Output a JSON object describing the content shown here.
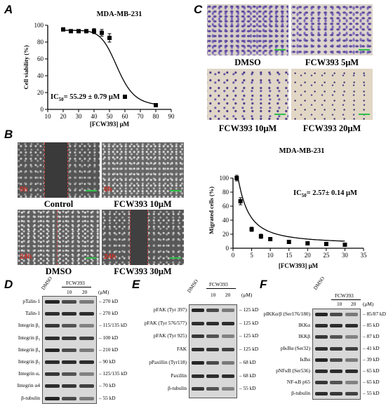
{
  "panels": {
    "A": {
      "letter": "A",
      "title": "MDA-MB-231",
      "ylabel": "Cell viability (%)",
      "xlabel": "[FCW393] μM",
      "ic50_prefix": "IC",
      "ic50_sub": "50",
      "ic50_value": "= 55.29 ± 0.79 μM"
    },
    "B": {
      "letter": "B",
      "labels": [
        "Control",
        "FCW393 10μM",
        "DMSO",
        "FCW393 30μM"
      ],
      "time_badges": [
        "0h",
        "0h",
        "24h",
        "24h"
      ]
    },
    "C": {
      "letter": "C",
      "labels": [
        "DMSO",
        "FCW393 5μM",
        "FCW393 10μM",
        "FCW393 20μM"
      ],
      "title": "MDA-MB-231",
      "ylabel": "Migrated cells (%)",
      "xlabel": "[FCW393] μM",
      "ic50_prefix": "IC",
      "ic50_sub": "50",
      "ic50_value": "= 2.57± 0.14 μM"
    },
    "D": {
      "letter": "D",
      "lane_dmso": "DMSO",
      "drug": "FCW393",
      "doses": [
        "10",
        "20"
      ],
      "unit": "(μM)",
      "rows": [
        {
          "label": "pTalin-1",
          "size": "270 kD"
        },
        {
          "label": "Talin-1",
          "size": "270 kD"
        },
        {
          "label": "Integrin β₁",
          "size": "115/135 kD"
        },
        {
          "label": "Integrin β₃",
          "size": "100 kD"
        },
        {
          "label": "Integrin β₄",
          "size": "210 kD"
        },
        {
          "label": "Integrin β₅",
          "size": "90 kD"
        },
        {
          "label": "Integrin αᵥ",
          "size": "125/135 kD"
        },
        {
          "label": "Integrin α4",
          "size": "70 kD"
        },
        {
          "label": "β-tubulin",
          "size": "55 kD"
        }
      ]
    },
    "E": {
      "letter": "E",
      "lane_dmso": "DMSO",
      "drug": "FCW393",
      "doses": [
        "10",
        "20"
      ],
      "unit": "(μM)",
      "rows": [
        {
          "label": "pFAK (Tyr 397)",
          "size": "125 kD"
        },
        {
          "label": "pFAK (Tyr 576/577)",
          "size": "125 kD"
        },
        {
          "label": "pFAK (Tyr 925)",
          "size": "125 kD"
        },
        {
          "label": "FAK",
          "size": "125 kD"
        },
        {
          "label": "pPaxillin (Tyr118)",
          "size": "68 kD"
        },
        {
          "label": "Paxillin",
          "size": "68 kD"
        },
        {
          "label": "β-tubulin",
          "size": "55 kD"
        }
      ]
    },
    "F": {
      "letter": "F",
      "lane_dmso": "DMSO",
      "drug": "FCW393",
      "doses": [
        "10",
        "20"
      ],
      "unit": "(μM)",
      "rows": [
        {
          "label": "pIKKα/β (Ser176/180)",
          "size": "85/87 kD"
        },
        {
          "label": "IKKα",
          "size": "85 kD"
        },
        {
          "label": "IKKβ",
          "size": "87 kD"
        },
        {
          "label": "pIκBα (Ser32)",
          "size": "41 kD"
        },
        {
          "label": "IκBα",
          "size": "39 kD"
        },
        {
          "label": "pNFκB (Ser536)",
          "size": "65 kD"
        },
        {
          "label": "NF-κB p65",
          "size": "65 kD"
        },
        {
          "label": "β-tubulin",
          "size": "55 kD"
        }
      ]
    }
  },
  "chart_data": [
    {
      "type": "scatter",
      "title": "MDA-MB-231",
      "xlabel": "[FCW393] μM",
      "ylabel": "Cell viability (%)",
      "xlim": [
        10,
        90
      ],
      "ylim": [
        0,
        100
      ],
      "xticks": [
        10,
        20,
        30,
        40,
        50,
        60,
        70,
        80,
        90
      ],
      "yticks": [
        0,
        20,
        40,
        60,
        80,
        100
      ],
      "series": [
        {
          "x": [
            20,
            25,
            30,
            35,
            40,
            45,
            50,
            60,
            80
          ],
          "y": [
            95,
            93,
            93,
            93,
            93,
            91,
            85,
            15,
            5
          ],
          "err": [
            2,
            2,
            2,
            2,
            3,
            4,
            5,
            2,
            1
          ]
        }
      ],
      "fit": {
        "type": "sigmoid",
        "top": 94,
        "bottom": 4,
        "ic50": 55.29,
        "hill": 10
      },
      "annotation": "IC50 = 55.29 ± 0.79 μM"
    },
    {
      "type": "scatter",
      "title": "MDA-MB-231",
      "xlabel": "[FCW393] μM",
      "ylabel": "Migrated cells (%)",
      "xlim": [
        0,
        35
      ],
      "ylim": [
        0,
        100
      ],
      "xticks": [
        0,
        5,
        10,
        15,
        20,
        25,
        30,
        35
      ],
      "yticks": [
        0,
        20,
        40,
        60,
        80,
        100
      ],
      "series": [
        {
          "x": [
            1,
            2,
            5,
            7.5,
            10,
            15,
            20,
            25,
            30
          ],
          "y": [
            100,
            67,
            27,
            17,
            13,
            9,
            7,
            6,
            5
          ],
          "err": [
            4,
            5,
            3,
            3,
            2,
            2,
            1,
            1,
            1
          ]
        }
      ],
      "fit": {
        "type": "decay",
        "top": 138,
        "bottom": 6,
        "ic50": 2.57,
        "hill": 1.4
      },
      "annotation": "IC50 = 2.57 ± 0.14 μM"
    }
  ]
}
